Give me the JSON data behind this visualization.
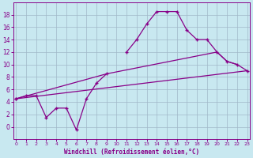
{
  "xlabel": "Windchill (Refroidissement éolien,°C)",
  "background_color": "#c8e8f0",
  "line_color": "#880088",
  "grid_color": "#a0b8c8",
  "ylim": [
    -2,
    20
  ],
  "xlim": [
    -0.3,
    23.3
  ],
  "yticks": [
    0,
    2,
    4,
    6,
    8,
    10,
    12,
    14,
    16,
    18
  ],
  "xticks": [
    0,
    1,
    2,
    3,
    4,
    5,
    6,
    7,
    8,
    9,
    10,
    11,
    12,
    13,
    14,
    15,
    16,
    17,
    18,
    19,
    20,
    21,
    22,
    23
  ],
  "curve1_x": [
    0,
    1,
    2,
    3,
    4,
    5,
    6,
    7,
    8,
    9
  ],
  "curve1_y": [
    4.5,
    5.0,
    5.0,
    1.5,
    3.0,
    3.0,
    -0.5,
    4.5,
    7.0,
    8.5
  ],
  "curve2_x": [
    11,
    12,
    13,
    14,
    15,
    16,
    17,
    18,
    19,
    20,
    21,
    22
  ],
  "curve2_y": [
    12.0,
    14.0,
    16.5,
    18.5,
    18.5,
    18.5,
    15.5,
    14.0,
    14.0,
    12.0,
    10.5,
    10.0
  ],
  "curve3_x": [
    0,
    23
  ],
  "curve3_y": [
    4.5,
    9.0
  ],
  "curve4_x": [
    0,
    9,
    20,
    21,
    22,
    23
  ],
  "curve4_y": [
    4.5,
    8.5,
    12.0,
    10.5,
    10.0,
    9.0
  ]
}
